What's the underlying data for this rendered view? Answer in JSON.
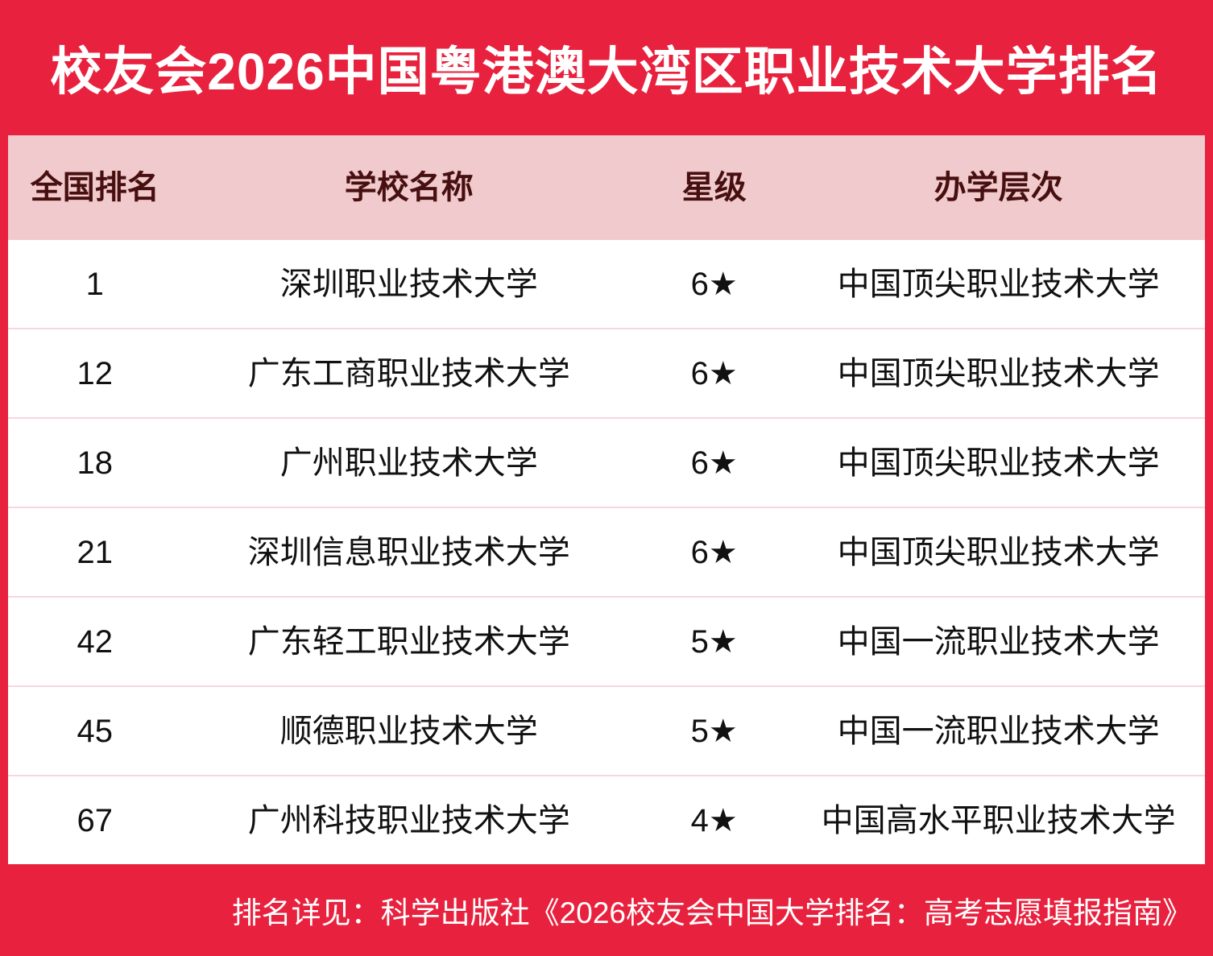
{
  "page": {
    "title": "校友会2026中国粤港澳大湾区职业技术大学排名",
    "footer_note": "排名详见：科学出版社《2026校友会中国大学排名：高考志愿填报指南》"
  },
  "colors": {
    "banner_red": "#e8223e",
    "header_pink": "#f0cacc",
    "header_text_maroon": "#470f0f",
    "row_divider_pink": "#f8d6de",
    "body_text": "#111111",
    "title_text": "#ffffff"
  },
  "table": {
    "columns": [
      "全国排名",
      "学校名称",
      "星级",
      "办学层次"
    ],
    "rows": [
      {
        "rank": "1",
        "school": "深圳职业技术大学",
        "stars": "6★",
        "level": "中国顶尖职业技术大学"
      },
      {
        "rank": "12",
        "school": "广东工商职业技术大学",
        "stars": "6★",
        "level": "中国顶尖职业技术大学"
      },
      {
        "rank": "18",
        "school": "广州职业技术大学",
        "stars": "6★",
        "level": "中国顶尖职业技术大学"
      },
      {
        "rank": "21",
        "school": "深圳信息职业技术大学",
        "stars": "6★",
        "level": "中国顶尖职业技术大学"
      },
      {
        "rank": "42",
        "school": "广东轻工职业技术大学",
        "stars": "5★",
        "level": "中国一流职业技术大学"
      },
      {
        "rank": "45",
        "school": "顺德职业技术大学",
        "stars": "5★",
        "level": "中国一流职业技术大学"
      },
      {
        "rank": "67",
        "school": "广州科技职业技术大学",
        "stars": "4★",
        "level": "中国高水平职业技术大学"
      }
    ]
  },
  "chart_data": {
    "type": "table",
    "title": "校友会2026中国粤港澳大湾区职业技术大学排名",
    "columns": [
      "全国排名",
      "学校名称",
      "星级",
      "办学层次"
    ],
    "rows": [
      [
        "1",
        "深圳职业技术大学",
        "6★",
        "中国顶尖职业技术大学"
      ],
      [
        "12",
        "广东工商职业技术大学",
        "6★",
        "中国顶尖职业技术大学"
      ],
      [
        "18",
        "广州职业技术大学",
        "6★",
        "中国顶尖职业技术大学"
      ],
      [
        "21",
        "深圳信息职业技术大学",
        "6★",
        "中国顶尖职业技术大学"
      ],
      [
        "42",
        "广东轻工职业技术大学",
        "5★",
        "中国一流职业技术大学"
      ],
      [
        "45",
        "顺德职业技术大学",
        "5★",
        "中国一流职业技术大学"
      ],
      [
        "67",
        "广州科技职业技术大学",
        "4★",
        "中国高水平职业技术大学"
      ]
    ],
    "footnote": "排名详见：科学出版社《2026校友会中国大学排名：高考志愿填报指南》"
  }
}
